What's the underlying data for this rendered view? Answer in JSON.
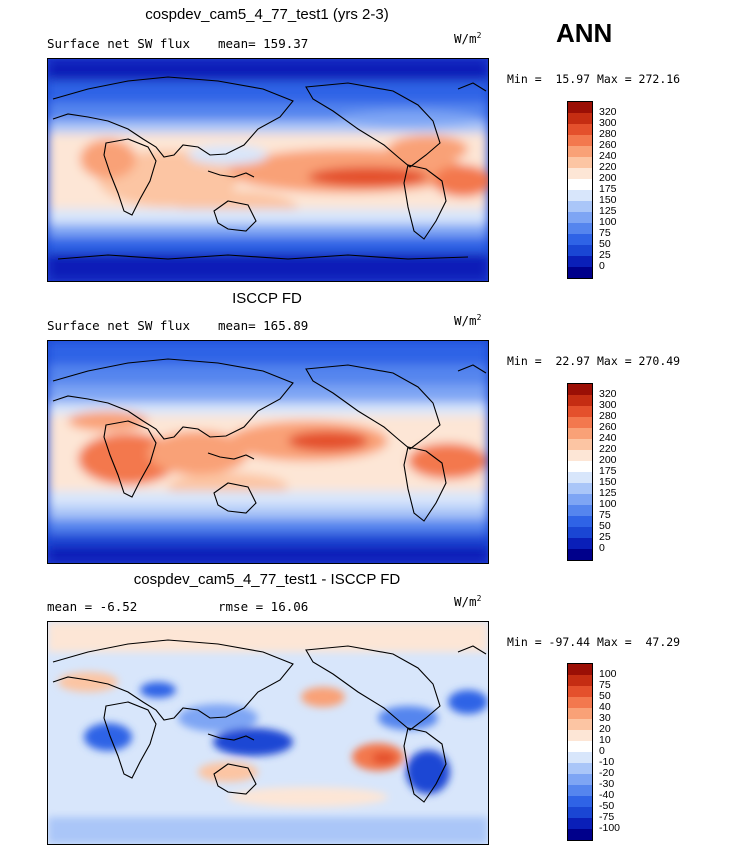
{
  "season": "ANN",
  "panels": [
    {
      "title": "cospdev_cam5_4_77_test1 (yrs 2-3)",
      "left": "Surface net SW flux",
      "right": "mean= 159.37",
      "units": "W/m",
      "units_sup": "2",
      "minmax": "Min =  15.97 Max = 272.16",
      "colorbar": {
        "colors": [
          "#00008b",
          "#0a1fb8",
          "#1a46d4",
          "#2f63e6",
          "#5585ee",
          "#7ea5f4",
          "#aac6f8",
          "#d8e6fb",
          "#fde6d6",
          "#fcc5a3",
          "#f9a177",
          "#f3784e",
          "#e4502c",
          "#c52d12",
          "#9b0f05"
        ],
        "labels": [
          "320",
          "300",
          "280",
          "260",
          "240",
          "220",
          "200",
          "175",
          "150",
          "125",
          "100",
          "75",
          "50",
          "25",
          "0"
        ]
      }
    },
    {
      "title": "ISCCP FD",
      "left": "Surface net SW flux",
      "right": "mean= 165.89",
      "units": "W/m",
      "units_sup": "2",
      "minmax": "Min =  22.97 Max = 270.49",
      "colorbar": {
        "colors": [
          "#00008b",
          "#0a1fb8",
          "#1a46d4",
          "#2f63e6",
          "#5585ee",
          "#7ea5f4",
          "#aac6f8",
          "#d8e6fb",
          "#fde6d6",
          "#fcc5a3",
          "#f9a177",
          "#f3784e",
          "#e4502c",
          "#c52d12",
          "#9b0f05"
        ],
        "labels": [
          "320",
          "300",
          "280",
          "260",
          "240",
          "220",
          "200",
          "175",
          "150",
          "125",
          "100",
          "75",
          "50",
          "25",
          "0"
        ]
      }
    },
    {
      "title": "cospdev_cam5_4_77_test1 - ISCCP FD",
      "left": "mean =   -6.52",
      "right": "rmse =   16.06",
      "units": "W/m",
      "units_sup": "2",
      "minmax": "Min = -97.44 Max =  47.29",
      "colorbar": {
        "colors": [
          "#00008b",
          "#0a1fb8",
          "#1a46d4",
          "#2f63e6",
          "#5585ee",
          "#7ea5f4",
          "#aac6f8",
          "#d8e6fb",
          "#fde6d6",
          "#fcc5a3",
          "#f9a177",
          "#f3784e",
          "#e4502c",
          "#c52d12",
          "#9b0f05"
        ],
        "labels": [
          "100",
          "75",
          "50",
          "40",
          "30",
          "20",
          "10",
          "0",
          "-10",
          "-20",
          "-30",
          "-40",
          "-50",
          "-75",
          "-100"
        ]
      }
    }
  ]
}
